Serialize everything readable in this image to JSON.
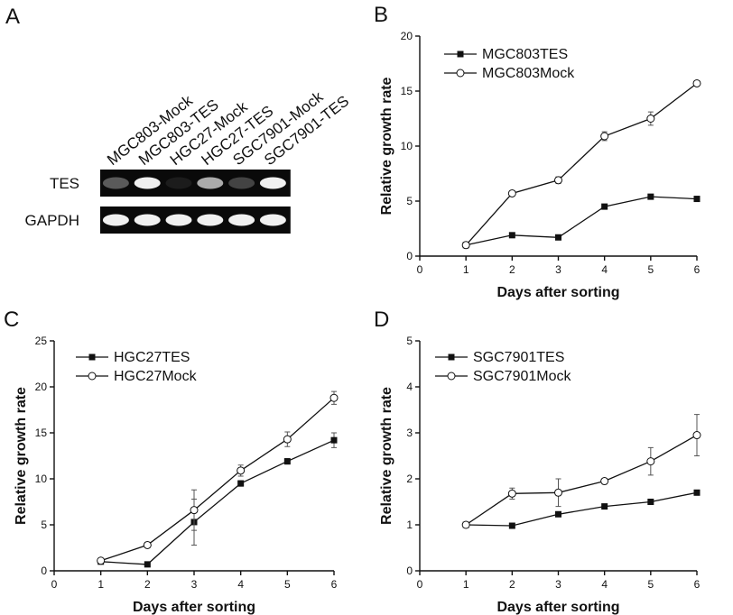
{
  "panel_a": {
    "letter": "A",
    "lane_labels": [
      "MGC803-Mock",
      "MGC803-TES",
      "HGC27-Mock",
      "HGC27-TES",
      "SGC7901-Mock",
      "SGC7901-TES"
    ],
    "genes": [
      {
        "name": "TES",
        "band_intensity": [
          0.35,
          1.0,
          0.08,
          0.7,
          0.25,
          1.0
        ]
      },
      {
        "name": "GAPDH",
        "band_intensity": [
          1.0,
          1.0,
          1.0,
          1.0,
          1.0,
          1.0
        ]
      }
    ]
  },
  "chart_data": [
    {
      "panel": "B",
      "type": "line",
      "xlabel": "Days after sorting",
      "ylabel": "Relative growth rate",
      "xlim": [
        0,
        6
      ],
      "ylim": [
        0,
        20
      ],
      "xticks": [
        0,
        1,
        2,
        3,
        4,
        5,
        6
      ],
      "yticks": [
        0,
        5,
        10,
        15,
        20
      ],
      "legend_position": "top-left",
      "x": [
        1,
        2,
        3,
        4,
        5,
        6
      ],
      "series": [
        {
          "name": "MGC803TES",
          "marker": "filled-square",
          "values": [
            1.0,
            1.9,
            1.7,
            4.5,
            5.4,
            5.2
          ],
          "errors": [
            0.1,
            0.1,
            0.1,
            0.2,
            0.2,
            0.2
          ]
        },
        {
          "name": "MGC803Mock",
          "marker": "open-circle",
          "values": [
            1.0,
            5.7,
            6.9,
            10.9,
            12.5,
            15.7
          ],
          "errors": [
            0.1,
            0.2,
            0.3,
            0.4,
            0.6,
            0.2
          ]
        }
      ]
    },
    {
      "panel": "C",
      "type": "line",
      "xlabel": "Days after sorting",
      "ylabel": "Relative growth rate",
      "xlim": [
        0,
        6
      ],
      "ylim": [
        0,
        25
      ],
      "xticks": [
        0,
        1,
        2,
        3,
        4,
        5,
        6
      ],
      "yticks": [
        0,
        5,
        10,
        15,
        20,
        25
      ],
      "legend_position": "top-left",
      "x": [
        1,
        2,
        3,
        4,
        5,
        6
      ],
      "series": [
        {
          "name": "HGC27TES",
          "marker": "filled-square",
          "values": [
            1.0,
            0.7,
            5.3,
            9.5,
            11.9,
            14.2
          ],
          "errors": [
            0.2,
            0.1,
            2.5,
            0.3,
            0.3,
            0.8
          ]
        },
        {
          "name": "HGC27Mock",
          "marker": "open-circle",
          "values": [
            1.1,
            2.8,
            6.6,
            10.9,
            14.3,
            18.8
          ],
          "errors": [
            0.2,
            0.3,
            2.2,
            0.6,
            0.8,
            0.7
          ]
        }
      ]
    },
    {
      "panel": "D",
      "type": "line",
      "xlabel": "Days after sorting",
      "ylabel": "Relative growth rate",
      "xlim": [
        0,
        6
      ],
      "ylim": [
        0,
        5
      ],
      "xticks": [
        0,
        1,
        2,
        3,
        4,
        5,
        6
      ],
      "yticks": [
        0,
        1,
        2,
        3,
        4,
        5
      ],
      "legend_position": "top-left",
      "x": [
        1,
        2,
        3,
        4,
        5,
        6
      ],
      "series": [
        {
          "name": "SGC7901TES",
          "marker": "filled-square",
          "values": [
            1.0,
            0.98,
            1.23,
            1.4,
            1.5,
            1.7
          ],
          "errors": [
            0.03,
            0.03,
            0.04,
            0.04,
            0.04,
            0.05
          ]
        },
        {
          "name": "SGC7901Mock",
          "marker": "open-circle",
          "values": [
            1.0,
            1.68,
            1.7,
            1.95,
            2.38,
            2.95
          ],
          "errors": [
            0.05,
            0.12,
            0.3,
            0.06,
            0.3,
            0.45
          ]
        }
      ]
    }
  ]
}
